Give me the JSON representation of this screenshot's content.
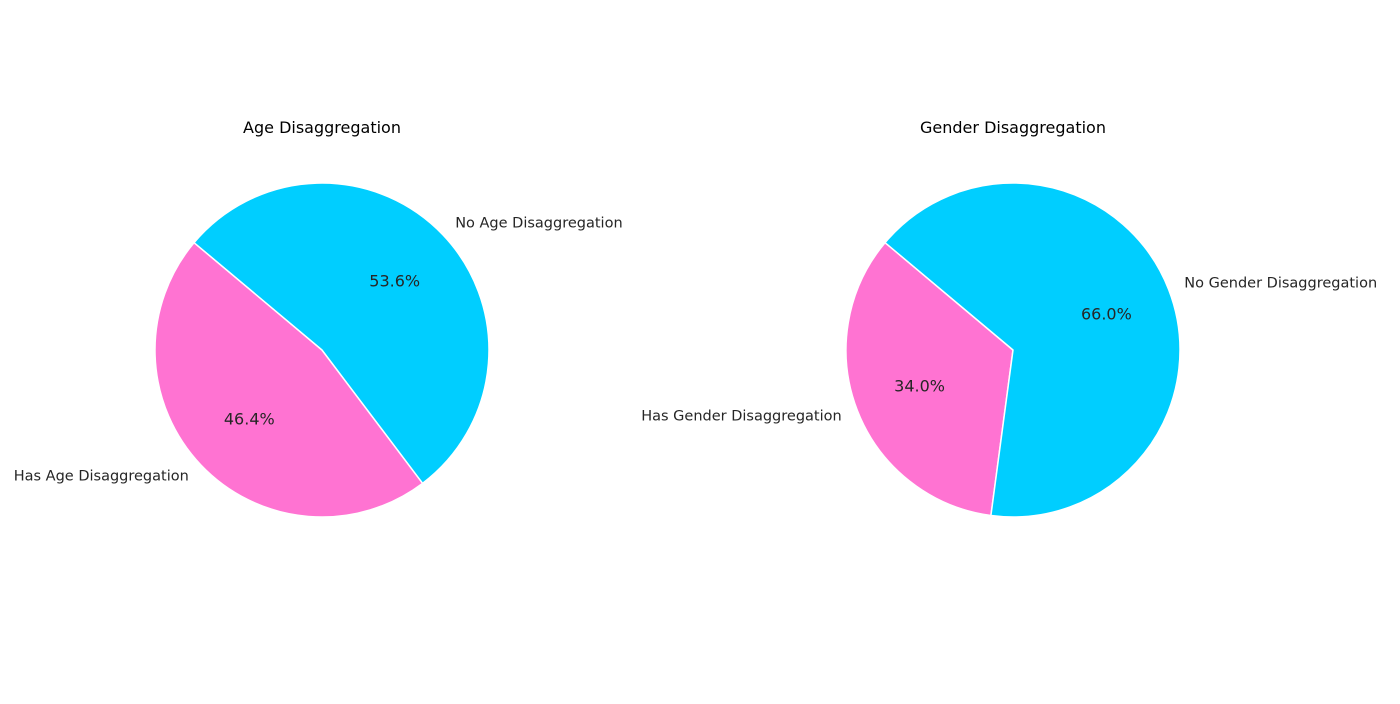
{
  "chart_data": [
    {
      "type": "pie",
      "title": "Age Disaggregation",
      "start_angle_deg": 140,
      "direction": "counterclockwise",
      "slices": [
        {
          "label": "Has Age Disaggregation",
          "value": 46.4,
          "pct_text": "46.4%",
          "color": "#ff73d2"
        },
        {
          "label": "No Age Disaggregation",
          "value": 53.6,
          "pct_text": "53.6%",
          "color": "#00ceff"
        }
      ]
    },
    {
      "type": "pie",
      "title": "Gender Disaggregation",
      "start_angle_deg": 140,
      "direction": "counterclockwise",
      "slices": [
        {
          "label": "Has Gender Disaggregation",
          "value": 34.0,
          "pct_text": "34.0%",
          "color": "#ff73d2"
        },
        {
          "label": "No Gender Disaggregation",
          "value": 66.0,
          "pct_text": "66.0%",
          "color": "#00ceff"
        }
      ]
    }
  ]
}
